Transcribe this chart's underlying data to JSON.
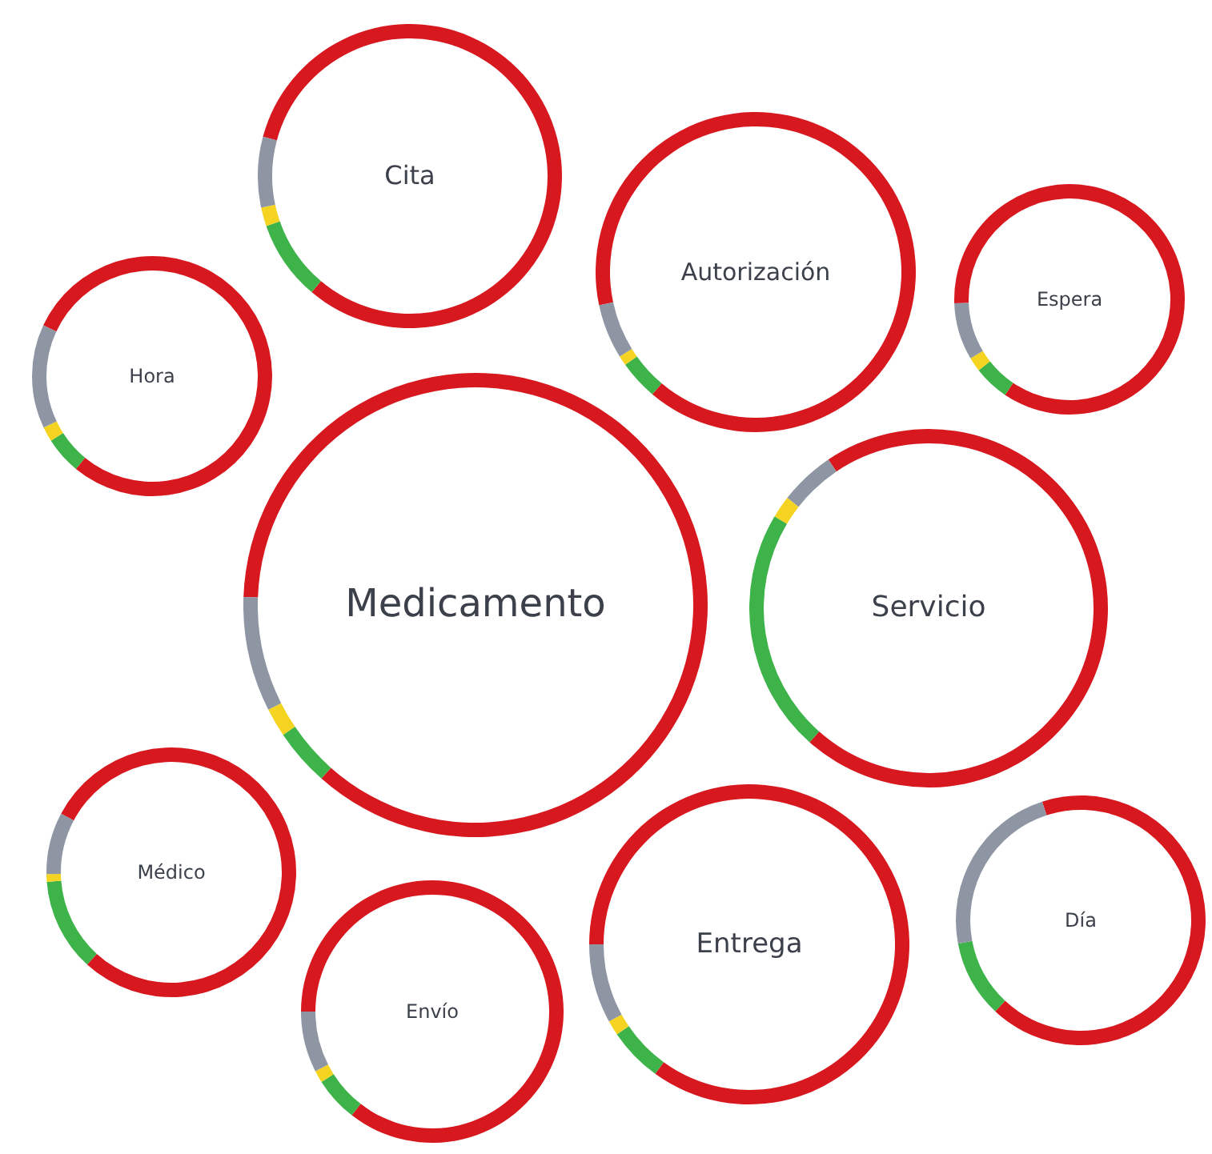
{
  "chart_data": [
    {
      "type": "donut",
      "title": "Cita",
      "categories": [
        null,
        null,
        null,
        null
      ],
      "values": [
        82,
        8.5,
        2,
        7.5
      ],
      "colors": [
        "#d7191f",
        "#3db34a",
        "#f4d321",
        "#8e95a3"
      ]
    },
    {
      "type": "donut",
      "title": "Autorización",
      "categories": [
        null,
        null,
        null,
        null
      ],
      "values": [
        89.5,
        4,
        1,
        5.5
      ],
      "colors": [
        "#d7191f",
        "#3db34a",
        "#f4d321",
        "#8e95a3"
      ]
    },
    {
      "type": "donut",
      "title": "Espera",
      "categories": [
        null,
        null,
        null,
        null
      ],
      "values": [
        85,
        5,
        2,
        8
      ],
      "colors": [
        "#d7191f",
        "#3db34a",
        "#f4d321",
        "#8e95a3"
      ]
    },
    {
      "type": "donut",
      "title": "Hora",
      "categories": [
        null,
        null,
        null,
        null
      ],
      "values": [
        79,
        5,
        2,
        14
      ],
      "colors": [
        "#d7191f",
        "#3db34a",
        "#f4d321",
        "#8e95a3"
      ]
    },
    {
      "type": "donut",
      "title": "Medicamento",
      "categories": [
        null,
        null,
        null,
        null
      ],
      "values": [
        86,
        4,
        2,
        8
      ],
      "colors": [
        "#d7191f",
        "#3db34a",
        "#f4d321",
        "#8e95a3"
      ]
    },
    {
      "type": "donut",
      "title": "Servicio",
      "categories": [
        null,
        null,
        null,
        null
      ],
      "values": [
        71,
        22,
        2,
        5
      ],
      "colors": [
        "#d7191f",
        "#3db34a",
        "#f4d321",
        "#8e95a3"
      ]
    },
    {
      "type": "donut",
      "title": "Médico",
      "categories": [
        null,
        null,
        null,
        null
      ],
      "values": [
        79,
        12,
        1,
        8
      ],
      "colors": [
        "#d7191f",
        "#3db34a",
        "#f4d321",
        "#8e95a3"
      ]
    },
    {
      "type": "donut",
      "title": "Día",
      "categories": [
        null,
        null,
        null
      ],
      "values": [
        67,
        10,
        23
      ],
      "colors": [
        "#d7191f",
        "#3db34a",
        "#8e95a3"
      ]
    },
    {
      "type": "donut",
      "title": "Entrega",
      "categories": [
        null,
        null,
        null,
        null
      ],
      "values": [
        85,
        5.5,
        1.5,
        8
      ],
      "colors": [
        "#d7191f",
        "#3db34a",
        "#f4d321",
        "#8e95a3"
      ]
    },
    {
      "type": "donut",
      "title": "Envío",
      "categories": [
        null,
        null,
        null,
        null
      ],
      "values": [
        85.5,
        5.5,
        1.5,
        7.5
      ],
      "colors": [
        "#d7191f",
        "#3db34a",
        "#f4d321",
        "#8e95a3"
      ]
    }
  ]
}
